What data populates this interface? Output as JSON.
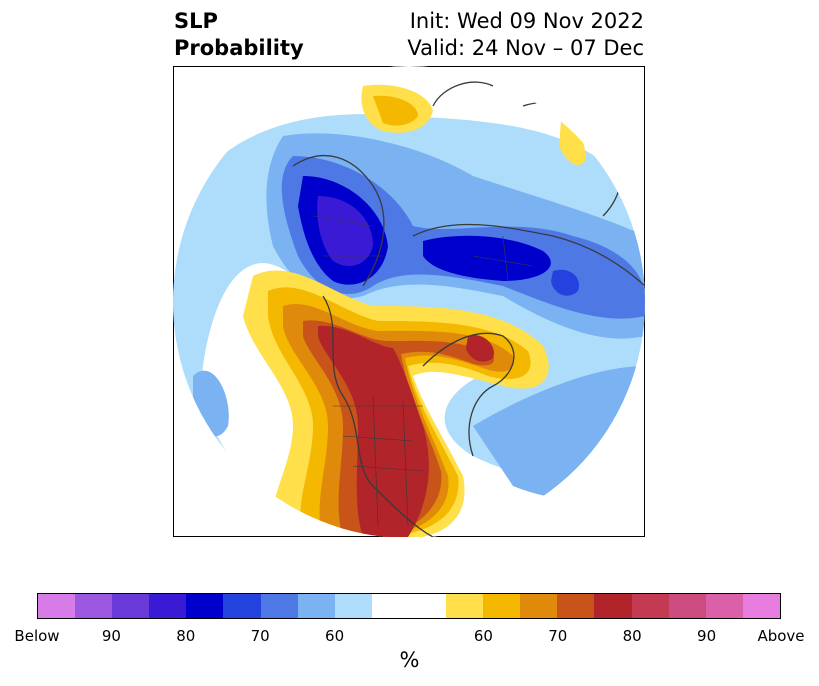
{
  "title": {
    "left_line1": "SLP",
    "left_line2": "Probability",
    "right_line1": "Init: Wed 09 Nov 2022",
    "right_line2": "Valid: 24 Nov – 07 Dec"
  },
  "colorbar": {
    "colors": [
      "#d77be9",
      "#9d58e1",
      "#6a3ad9",
      "#3a1ad4",
      "#0000cc",
      "#2442dd",
      "#4e79e5",
      "#7ab2f2",
      "#aedcfb",
      "#ffffff",
      "#ffffff",
      "#ffe04a",
      "#f4b800",
      "#e08a0c",
      "#c8541a",
      "#b0242a",
      "#c43a52",
      "#cc4c80",
      "#db60aa",
      "#e87de0"
    ],
    "tick_labels": [
      "Below",
      "90",
      "80",
      "70",
      "60",
      "60",
      "70",
      "80",
      "90",
      "Above"
    ],
    "unit": "%"
  }
}
